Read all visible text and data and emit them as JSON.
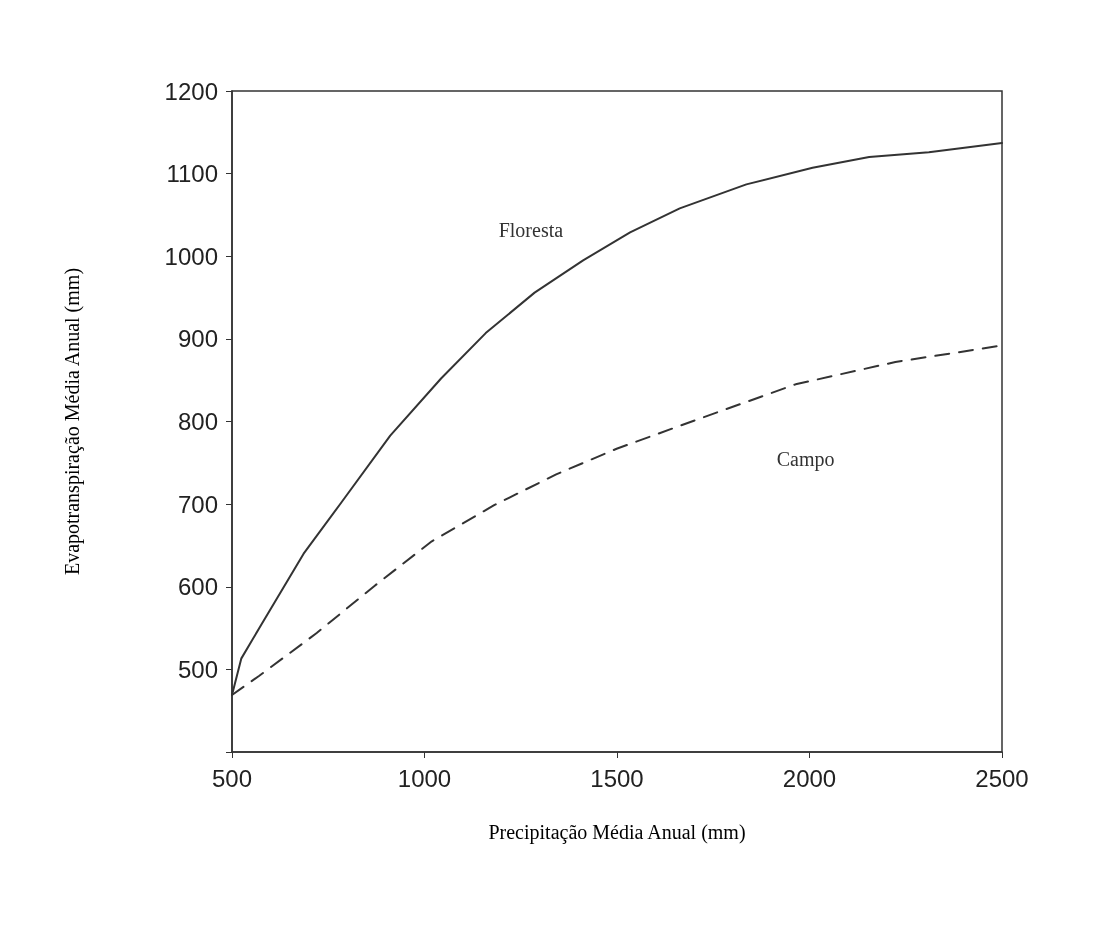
{
  "chart_data": {
    "type": "line",
    "xlabel": "Precipitação Média Anual (mm)",
    "ylabel": "Evapotranspiração Média Anual (mm)",
    "xlim": [
      500,
      2500
    ],
    "xticks": [
      500,
      1000,
      1500,
      2000,
      2500
    ],
    "ylim": [
      400,
      1200
    ],
    "yticks": [
      {
        "value": 400,
        "label": null
      },
      500,
      600,
      700,
      800,
      900,
      1000,
      1100,
      1200
    ],
    "grid": false,
    "legend": false,
    "series": [
      {
        "name": "Floresta",
        "color": "#333333",
        "line_style": "solid",
        "x": [
          500,
          524,
          576,
          686,
          784,
          911,
          1043,
          1159,
          1286,
          1412,
          1534,
          1663,
          1836,
          2008,
          2155,
          2310,
          2500
        ],
        "values": [
          469,
          513,
          554,
          640,
          702,
          783,
          852,
          907,
          956,
          995,
          1029,
          1058,
          1087,
          1107,
          1120,
          1126,
          1137
        ]
      },
      {
        "name": "Campo",
        "color": "#333333",
        "line_style": "dashed",
        "x": [
          500,
          570,
          720,
          870,
          1019,
          1182,
          1342,
          1499,
          1706,
          1964,
          2223,
          2500
        ],
        "values": [
          469,
          492,
          544,
          601,
          655,
          699,
          736,
          767,
          802,
          845,
          872,
          892
        ]
      }
    ]
  }
}
